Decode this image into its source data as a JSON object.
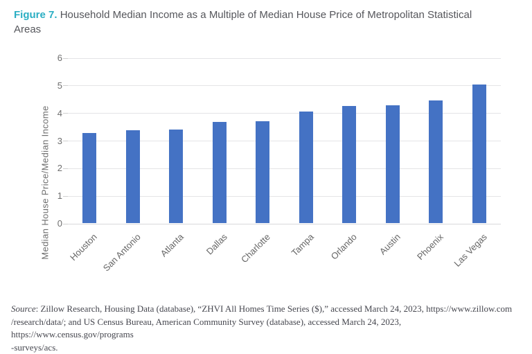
{
  "header": {
    "figure_label": "Figure 7.",
    "title": "Household Median Income as a Multiple of Median House Price of Metropolitan Statistical Areas"
  },
  "chart_data": {
    "type": "bar",
    "title": "Household Median Income as a Multiple of Median House Price of Metropolitan Statistical Areas",
    "categories": [
      "Houston",
      "San Antonio",
      "Atlanta",
      "Dallas",
      "Charlotte",
      "Tampa",
      "Orlando",
      "Austin",
      "Phoenix",
      "Las Vegas"
    ],
    "values": [
      3.27,
      3.36,
      3.4,
      3.66,
      3.69,
      4.05,
      4.24,
      4.28,
      4.45,
      5.01
    ],
    "xlabel": "",
    "ylabel": "Median House Price/Median Income",
    "ylim": [
      0,
      6
    ],
    "ytick_interval": 1,
    "grid": true,
    "legend": false,
    "bar_color": "#4472c4",
    "accent_color": "#2aaec3"
  },
  "source": {
    "label": "Source",
    "lines": [
      ": Zillow Research, Housing Data (database), “ZHVI All Homes Time Series ($),” accessed March 24, 2023, https://www.zillow.com",
      "/research/data/; and US Census Bureau, American Community Survey (database), accessed March 24, 2023, https://www.census.gov/programs",
      "-surveys/acs."
    ]
  }
}
